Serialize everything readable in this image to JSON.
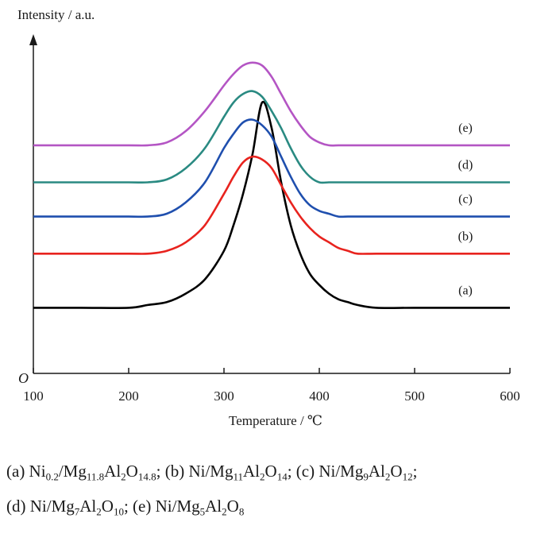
{
  "chart_data": {
    "type": "line",
    "xlabel": "Temperature / ℃",
    "ylabel": "Intensity / a.u.",
    "origin_label": "O",
    "xlim": [
      100,
      600
    ],
    "x_ticks": [
      "100",
      "200",
      "300",
      "400",
      "500",
      "600"
    ],
    "y_ticks": [],
    "grid": false,
    "legend": "none; series labelled inline at the right end of each curve",
    "y_units": "arbitrary (curves vertically offset)",
    "x": [
      100,
      150,
      200,
      220,
      240,
      260,
      280,
      300,
      310,
      320,
      330,
      340,
      350,
      360,
      370,
      380,
      390,
      400,
      410,
      420,
      430,
      440,
      460,
      500,
      550,
      600
    ],
    "series": [
      {
        "name": "(a)",
        "color": "#000000",
        "values": [
          0.23,
          0.23,
          0.23,
          0.24,
          0.25,
          0.28,
          0.33,
          0.43,
          0.52,
          0.63,
          0.77,
          0.95,
          0.86,
          0.67,
          0.52,
          0.42,
          0.35,
          0.31,
          0.28,
          0.26,
          0.25,
          0.24,
          0.23,
          0.23,
          0.23,
          0.23
        ]
      },
      {
        "name": "(b)",
        "color": "#e8231e",
        "values": [
          0.42,
          0.42,
          0.42,
          0.42,
          0.43,
          0.46,
          0.52,
          0.63,
          0.69,
          0.74,
          0.76,
          0.75,
          0.72,
          0.66,
          0.6,
          0.55,
          0.51,
          0.48,
          0.46,
          0.44,
          0.43,
          0.42,
          0.42,
          0.42,
          0.42,
          0.42
        ]
      },
      {
        "name": "(c)",
        "color": "#1f4fae",
        "values": [
          0.55,
          0.55,
          0.55,
          0.55,
          0.56,
          0.6,
          0.67,
          0.79,
          0.84,
          0.88,
          0.89,
          0.87,
          0.83,
          0.76,
          0.69,
          0.63,
          0.59,
          0.57,
          0.56,
          0.55,
          0.55,
          0.55,
          0.55,
          0.55,
          0.55,
          0.55
        ]
      },
      {
        "name": "(d)",
        "color": "#2a8a82",
        "values": [
          0.67,
          0.67,
          0.67,
          0.67,
          0.68,
          0.72,
          0.79,
          0.9,
          0.95,
          0.98,
          0.99,
          0.97,
          0.92,
          0.86,
          0.79,
          0.73,
          0.69,
          0.67,
          0.67,
          0.67,
          0.67,
          0.67,
          0.67,
          0.67,
          0.67,
          0.67
        ]
      },
      {
        "name": "(e)",
        "color": "#b455c4",
        "values": [
          0.8,
          0.8,
          0.8,
          0.8,
          0.81,
          0.85,
          0.92,
          1.01,
          1.05,
          1.08,
          1.09,
          1.08,
          1.04,
          0.98,
          0.92,
          0.87,
          0.83,
          0.81,
          0.8,
          0.8,
          0.8,
          0.8,
          0.8,
          0.8,
          0.8,
          0.8
        ]
      }
    ]
  },
  "caption": {
    "line1": [
      {
        "t": "(a) Ni"
      },
      {
        "sub": "0.2"
      },
      {
        "t": "/Mg"
      },
      {
        "sub": "11.8"
      },
      {
        "t": "Al"
      },
      {
        "sub": "2"
      },
      {
        "t": "O"
      },
      {
        "sub": "14.8"
      },
      {
        "t": "; (b) Ni/Mg"
      },
      {
        "sub": "11"
      },
      {
        "t": "Al"
      },
      {
        "sub": "2"
      },
      {
        "t": "O"
      },
      {
        "sub": "14"
      },
      {
        "t": "; (c) Ni/Mg"
      },
      {
        "sub": "9"
      },
      {
        "t": "Al"
      },
      {
        "sub": "2"
      },
      {
        "t": "O"
      },
      {
        "sub": "12"
      },
      {
        "t": ";"
      }
    ],
    "line2": [
      {
        "t": "(d) Ni/Mg"
      },
      {
        "sub": "7"
      },
      {
        "t": "Al"
      },
      {
        "sub": "2"
      },
      {
        "t": "O"
      },
      {
        "sub": "10"
      },
      {
        "t": "; (e) Ni/Mg"
      },
      {
        "sub": "5"
      },
      {
        "t": "Al"
      },
      {
        "sub": "2"
      },
      {
        "t": "O"
      },
      {
        "sub": "8"
      }
    ]
  }
}
